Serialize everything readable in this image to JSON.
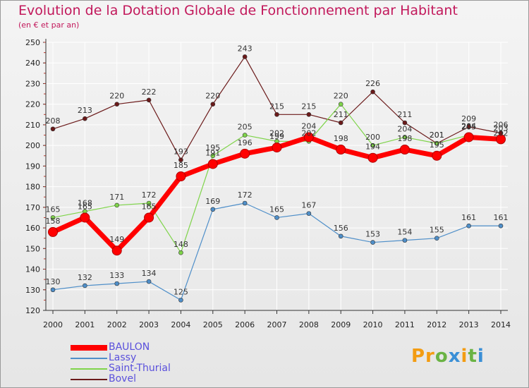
{
  "title": "Evolution de la Dotation Globale de Fonctionnement par Habitant",
  "subtitle": "(en € et par an)",
  "logo_text": "Proxiti",
  "colors": {
    "title": "#c2185b",
    "legend_text": "#5a50dc",
    "grid": "#ffffff",
    "axis": "#333333"
  },
  "chart_data": {
    "type": "line",
    "title": "Evolution de la Dotation Globale de Fonctionnement par Habitant",
    "subtitle": "(en € et par an)",
    "xlabel": "",
    "ylabel": "",
    "ylim": [
      120,
      250
    ],
    "ytick_step": 10,
    "grid": true,
    "legend_placement": "bottom-left",
    "x": [
      "2000",
      "2001",
      "2002",
      "2003",
      "2004",
      "2005",
      "2006",
      "2007",
      "2008",
      "2009",
      "2010",
      "2011",
      "2012",
      "2013",
      "2014"
    ],
    "series": [
      {
        "name": "BAULON",
        "color": "#ff0000",
        "values": [
          158,
          165,
          149,
          165,
          185,
          191,
          196,
          199,
          204,
          198,
          194,
          198,
          195,
          204,
          203
        ]
      },
      {
        "name": "Lassy",
        "color": "#4f8fc9",
        "values": [
          130,
          132,
          133,
          134,
          125,
          169,
          172,
          165,
          167,
          156,
          153,
          154,
          155,
          161,
          161
        ]
      },
      {
        "name": "Saint-Thurial",
        "color": "#7fd44a",
        "values": [
          165,
          168,
          171,
          172,
          148,
          195,
          205,
          202,
          202,
          220,
          200,
          204,
          201,
          205,
          202
        ]
      },
      {
        "name": "Bovel",
        "color": "#6b1a1a",
        "values": [
          208,
          213,
          220,
          222,
          193,
          220,
          243,
          215,
          215,
          211,
          226,
          211,
          201,
          209,
          206
        ]
      }
    ]
  }
}
